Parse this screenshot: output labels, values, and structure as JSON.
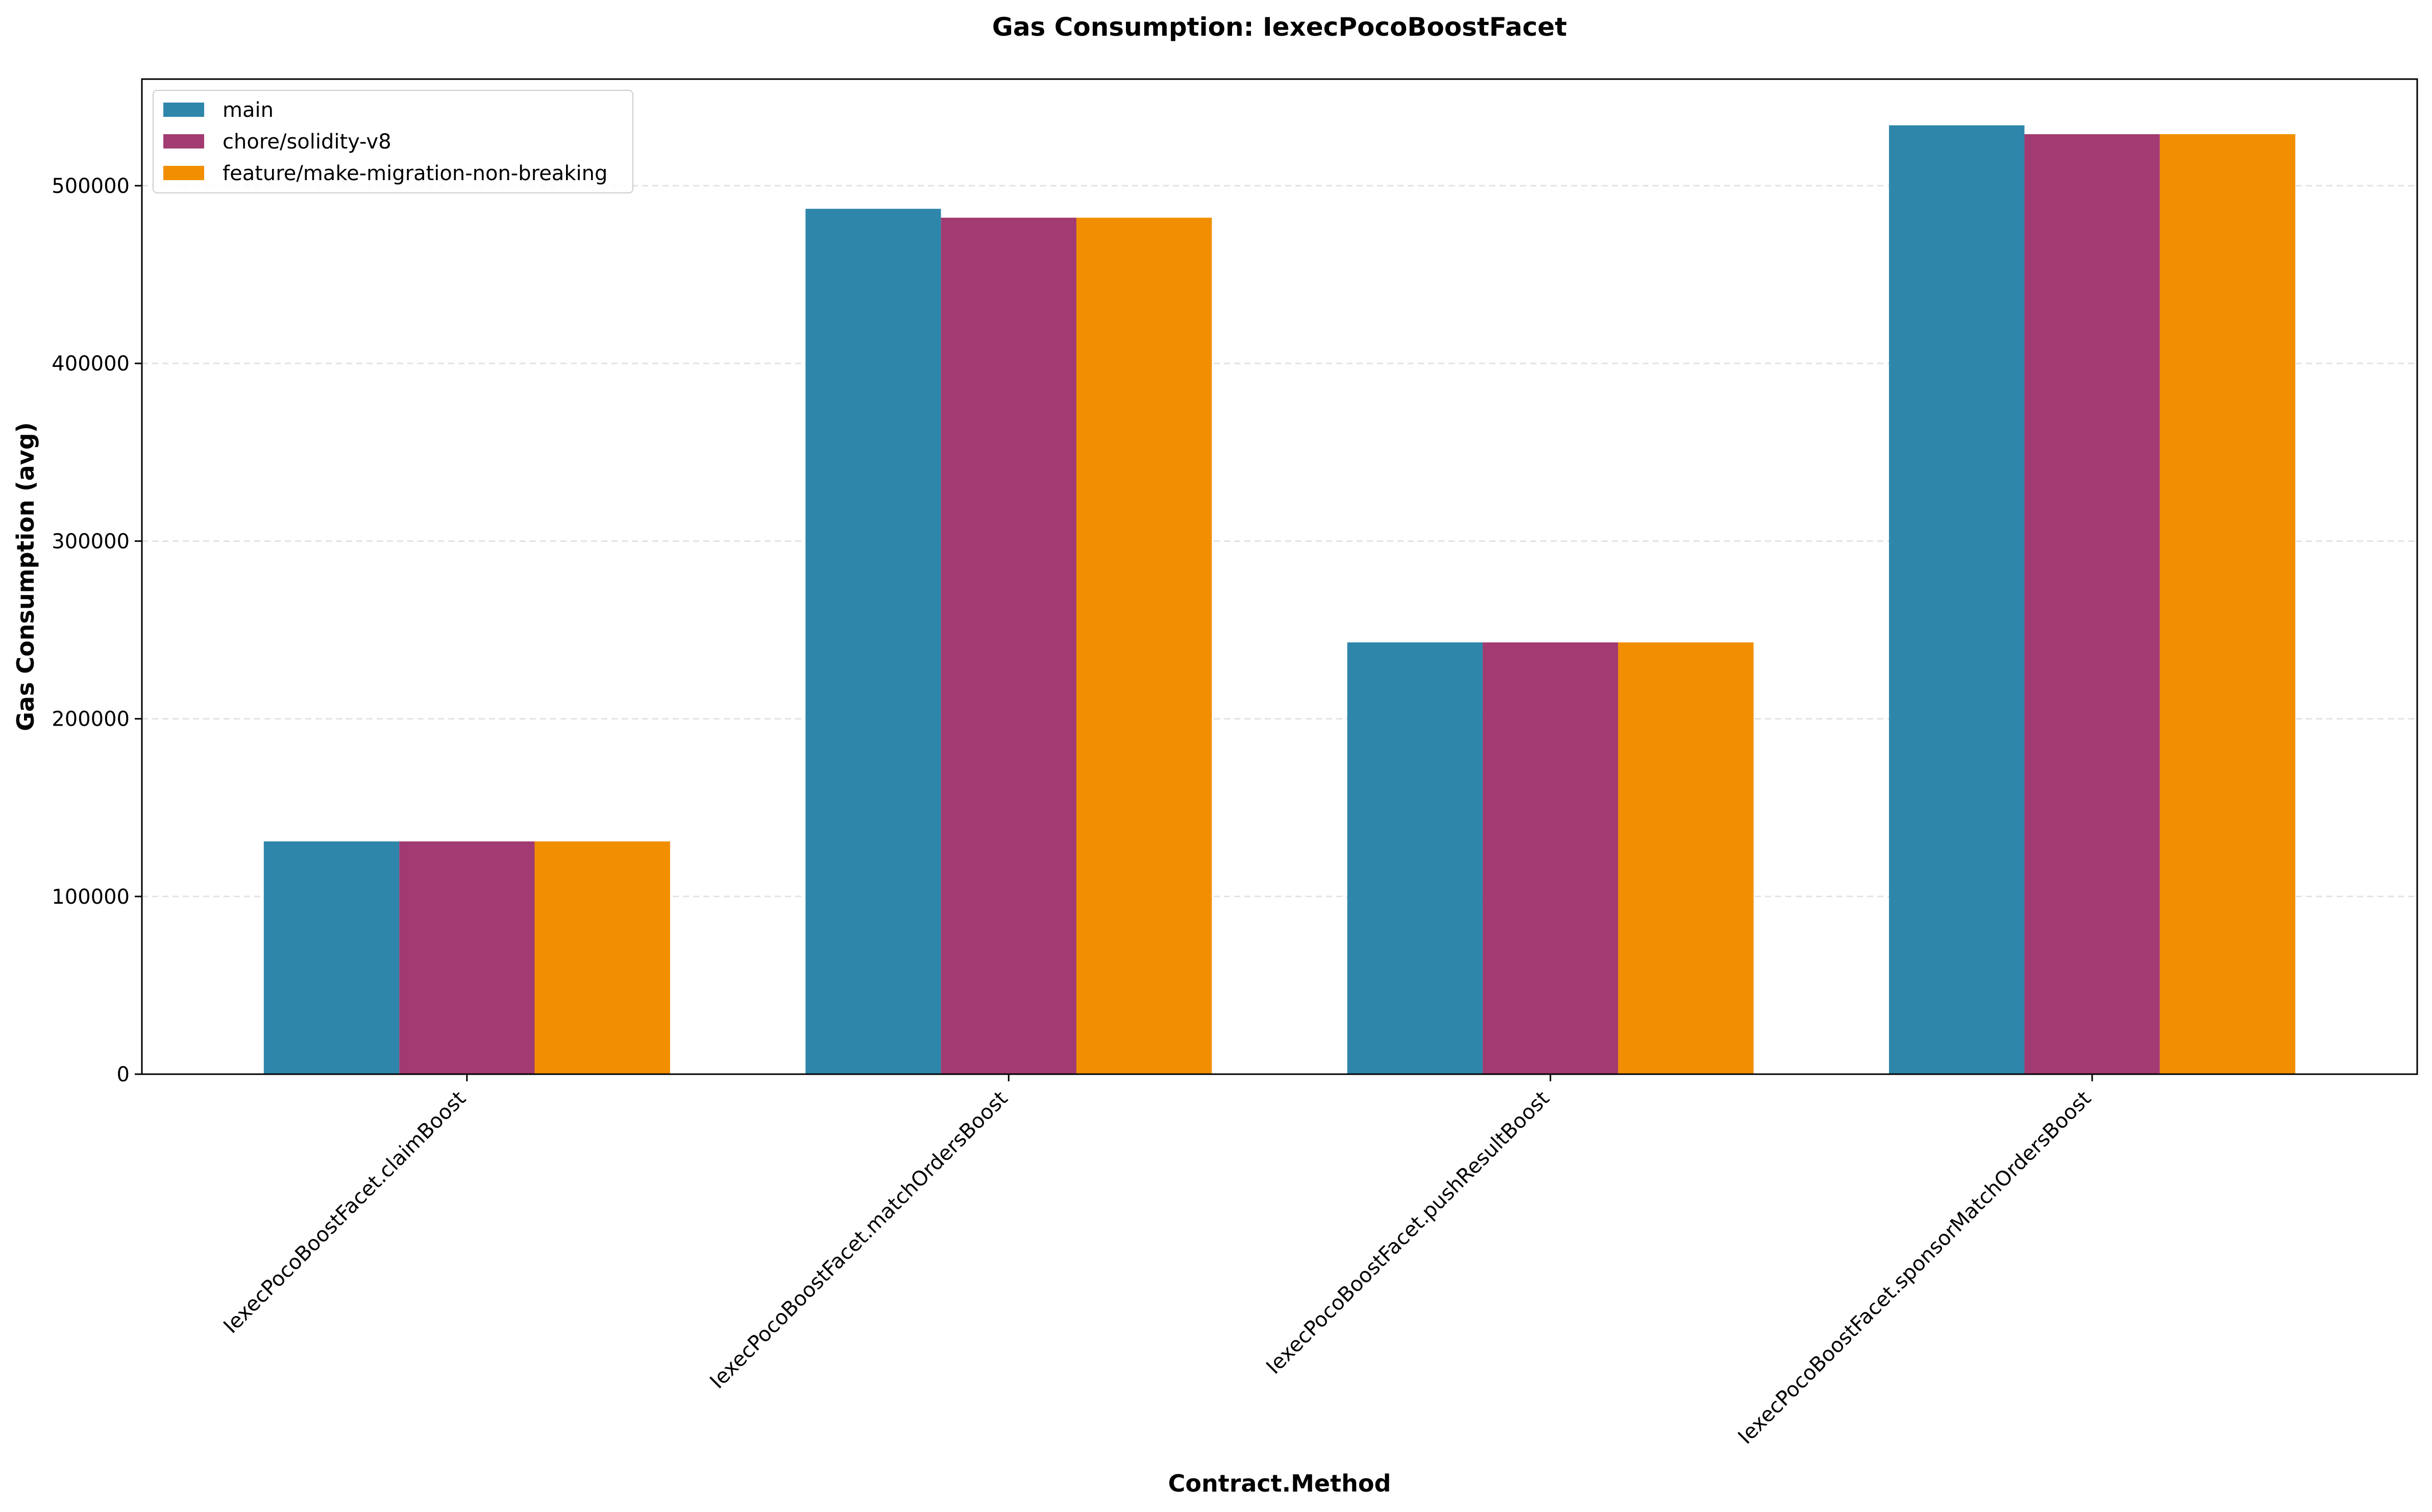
{
  "chart_data": {
    "type": "bar",
    "title": "Gas Consumption: IexecPocoBoostFacet",
    "xlabel": "Contract.Method",
    "ylabel": "Gas Consumption (avg)",
    "categories": [
      "IexecPocoBoostFacet.claimBoost",
      "IexecPocoBoostFacet.matchOrdersBoost",
      "IexecPocoBoostFacet.pushResultBoost",
      "IexecPocoBoostFacet.sponsorMatchOrdersBoost"
    ],
    "series": [
      {
        "name": "main",
        "color": "#2e86ab",
        "values": [
          131000,
          487000,
          243000,
          534000
        ]
      },
      {
        "name": "chore/solidity-v8",
        "color": "#a23b72",
        "values": [
          131000,
          482000,
          243000,
          529000
        ]
      },
      {
        "name": "feature/make-migration-non-breaking",
        "color": "#f18f01",
        "values": [
          131000,
          482000,
          243000,
          529000
        ]
      }
    ],
    "ylim": [
      0,
      560000
    ],
    "yticks": [
      0,
      100000,
      200000,
      300000,
      400000,
      500000
    ],
    "ytick_labels": [
      "0",
      "100000",
      "200000",
      "300000",
      "400000",
      "500000"
    ],
    "grid": "y-dashed",
    "legend_position": "top-left"
  }
}
